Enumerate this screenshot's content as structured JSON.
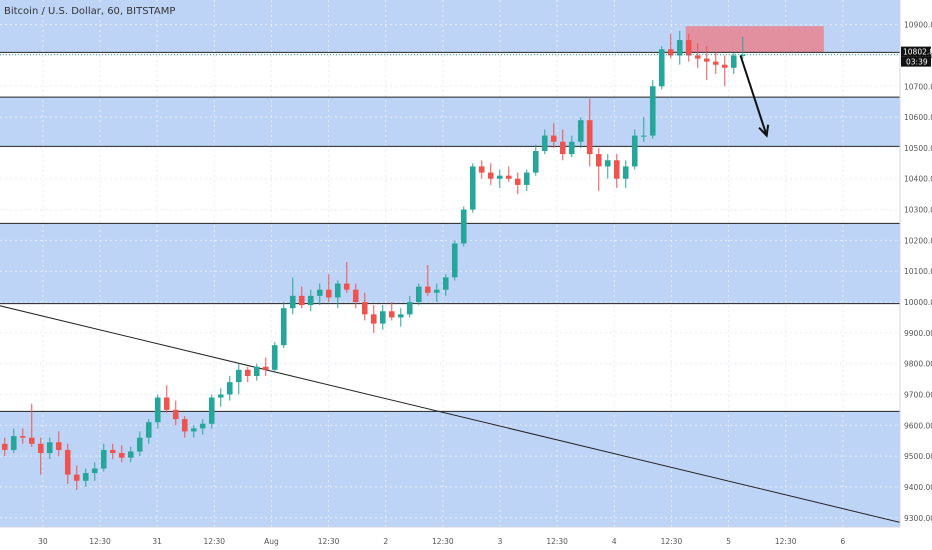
{
  "header": {
    "symbol_info": "Bitcoin / U.S. Dollar, 60, BITSTAMP"
  },
  "colors": {
    "band": "#bed4f7",
    "bull": "#26a69a",
    "bear": "#ef5350",
    "zone": "#e9828f",
    "line": "#222222",
    "axis_text": "#555555"
  },
  "chart_data": {
    "type": "candlestick",
    "title": "Bitcoin / U.S. Dollar, 60, BITSTAMP",
    "ylim": [
      9270,
      10980
    ],
    "y_ticks": [
      9300,
      9400,
      9500,
      9600,
      9700,
      9800,
      9900,
      10000,
      10100,
      10200,
      10300,
      10400,
      10500,
      10600,
      10700,
      10800,
      10900
    ],
    "y_tick_labels": [
      "9300.00",
      "9400.00",
      "9500.00",
      "9600.00",
      "9700.00",
      "9800.00",
      "9900.00",
      "10000.00",
      "10100.00",
      "10200.00",
      "10300.00",
      "10400.00",
      "10500.00",
      "10600.00",
      "10700.00",
      "10800.00",
      "10900.00"
    ],
    "x_range_hours": [
      0,
      156
    ],
    "x_ticks": [
      {
        "t": 12,
        "label": "30"
      },
      {
        "t": 24,
        "label": "12:30"
      },
      {
        "t": 36,
        "label": "31"
      },
      {
        "t": 48,
        "label": "12:30"
      },
      {
        "t": 60,
        "label": "Aug"
      },
      {
        "t": 72,
        "label": "12:30"
      },
      {
        "t": 84,
        "label": "2"
      },
      {
        "t": 96,
        "label": "12:30"
      },
      {
        "t": 108,
        "label": "3"
      },
      {
        "t": 120,
        "label": "12:30"
      },
      {
        "t": 132,
        "label": "4"
      },
      {
        "t": 144,
        "label": "12:30"
      },
      {
        "t": 156,
        "label": "5"
      },
      {
        "t": 168,
        "label": "12:30"
      },
      {
        "t": 180,
        "label": "6"
      }
    ],
    "x_range_visible": [
      3,
      192
    ],
    "ohlc": [
      [
        9540,
        9560,
        9500,
        9520
      ],
      [
        9520,
        9590,
        9510,
        9565
      ],
      [
        9565,
        9590,
        9540,
        9560
      ],
      [
        9560,
        9670,
        9530,
        9540
      ],
      [
        9540,
        9560,
        9440,
        9510
      ],
      [
        9510,
        9560,
        9490,
        9545
      ],
      [
        9545,
        9580,
        9500,
        9520
      ],
      [
        9520,
        9540,
        9410,
        9440
      ],
      [
        9440,
        9470,
        9390,
        9420
      ],
      [
        9420,
        9460,
        9400,
        9445
      ],
      [
        9445,
        9480,
        9420,
        9460
      ],
      [
        9460,
        9540,
        9450,
        9520
      ],
      [
        9520,
        9540,
        9490,
        9510
      ],
      [
        9510,
        9535,
        9480,
        9495
      ],
      [
        9495,
        9530,
        9480,
        9515
      ],
      [
        9515,
        9580,
        9500,
        9560
      ],
      [
        9560,
        9620,
        9540,
        9610
      ],
      [
        9610,
        9700,
        9590,
        9690
      ],
      [
        9690,
        9730,
        9640,
        9650
      ],
      [
        9650,
        9680,
        9600,
        9620
      ],
      [
        9620,
        9630,
        9560,
        9580
      ],
      [
        9580,
        9600,
        9560,
        9590
      ],
      [
        9590,
        9620,
        9570,
        9605
      ],
      [
        9605,
        9700,
        9590,
        9690
      ],
      [
        9690,
        9720,
        9660,
        9700
      ],
      [
        9700,
        9760,
        9680,
        9740
      ],
      [
        9740,
        9800,
        9700,
        9780
      ],
      [
        9780,
        9790,
        9740,
        9760
      ],
      [
        9760,
        9800,
        9745,
        9790
      ],
      [
        9790,
        9820,
        9760,
        9780
      ],
      [
        9780,
        9870,
        9770,
        9860
      ],
      [
        9860,
        10000,
        9850,
        9980
      ],
      [
        9980,
        10080,
        9960,
        10020
      ],
      [
        10020,
        10050,
        9980,
        9990
      ],
      [
        9990,
        10040,
        9970,
        10020
      ],
      [
        10020,
        10060,
        9990,
        10040
      ],
      [
        10040,
        10090,
        10000,
        10015
      ],
      [
        10015,
        10070,
        9980,
        10060
      ],
      [
        10060,
        10130,
        10030,
        10040
      ],
      [
        10040,
        10060,
        9980,
        10000
      ],
      [
        10000,
        10030,
        9940,
        9960
      ],
      [
        9960,
        9990,
        9900,
        9930
      ],
      [
        9930,
        9990,
        9910,
        9970
      ],
      [
        9970,
        10000,
        9940,
        9950
      ],
      [
        9950,
        9980,
        9920,
        9960
      ],
      [
        9960,
        10020,
        9950,
        10000
      ],
      [
        10000,
        10060,
        9990,
        10050
      ],
      [
        10050,
        10120,
        10020,
        10030
      ],
      [
        10030,
        10060,
        10000,
        10040
      ],
      [
        10040,
        10090,
        10020,
        10080
      ],
      [
        10080,
        10200,
        10070,
        10190
      ],
      [
        10190,
        10310,
        10180,
        10300
      ],
      [
        10300,
        10450,
        10290,
        10440
      ],
      [
        10440,
        10460,
        10400,
        10420
      ],
      [
        10420,
        10450,
        10380,
        10400
      ],
      [
        10400,
        10430,
        10370,
        10410
      ],
      [
        10410,
        10440,
        10390,
        10400
      ],
      [
        10400,
        10420,
        10350,
        10380
      ],
      [
        10380,
        10430,
        10360,
        10420
      ],
      [
        10420,
        10510,
        10410,
        10490
      ],
      [
        10490,
        10560,
        10480,
        10540
      ],
      [
        10540,
        10580,
        10500,
        10520
      ],
      [
        10520,
        10560,
        10460,
        10480
      ],
      [
        10480,
        10540,
        10470,
        10520
      ],
      [
        10520,
        10600,
        10500,
        10590
      ],
      [
        10590,
        10660,
        10440,
        10480
      ],
      [
        10480,
        10500,
        10360,
        10440
      ],
      [
        10440,
        10480,
        10400,
        10460
      ],
      [
        10460,
        10480,
        10370,
        10400
      ],
      [
        10400,
        10460,
        10370,
        10440
      ],
      [
        10440,
        10560,
        10430,
        10540
      ],
      [
        10540,
        10600,
        10520,
        10540
      ],
      [
        10540,
        10720,
        10530,
        10700
      ],
      [
        10700,
        10830,
        10690,
        10820
      ],
      [
        10820,
        10870,
        10790,
        10800
      ],
      [
        10800,
        10880,
        10770,
        10850
      ],
      [
        10850,
        10870,
        10780,
        10800
      ],
      [
        10800,
        10840,
        10760,
        10790
      ],
      [
        10790,
        10830,
        10720,
        10780
      ],
      [
        10780,
        10810,
        10740,
        10770
      ],
      [
        10770,
        10800,
        10700,
        10760
      ],
      [
        10760,
        10810,
        10740,
        10800
      ],
      [
        10800,
        10860,
        10790,
        10802
      ]
    ],
    "resistance_zone": {
      "y_low": 10810,
      "y_high": 10895
    },
    "horizontal_levels": [
      10810,
      10665,
      10505,
      10255,
      9995,
      9645
    ],
    "shaded_bands": [
      [
        10810,
        10980
      ],
      [
        10505,
        10665
      ],
      [
        9995,
        10255
      ],
      [
        9270,
        9645
      ]
    ],
    "trendline": [
      [
        -3,
        10010
      ],
      [
        192,
        9285
      ]
    ],
    "arrow": [
      [
        158.5,
        10800
      ],
      [
        164,
        10540
      ]
    ],
    "current_price": 10802.8,
    "price_label": "10802.80",
    "countdown": "03:39"
  }
}
